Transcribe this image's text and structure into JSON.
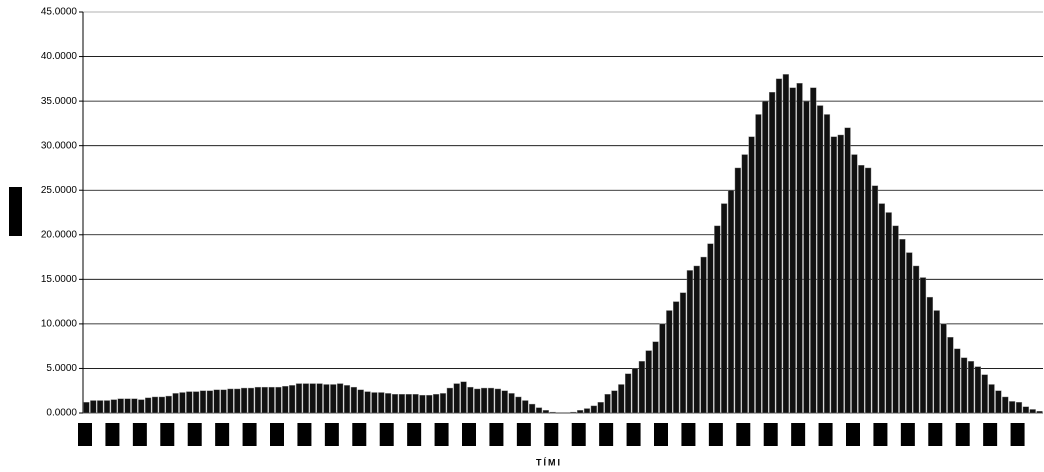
{
  "chart_data": {
    "type": "bar",
    "x_label": "TÍMI",
    "categories": [
      null,
      null,
      null,
      null,
      null,
      null,
      null,
      null,
      null,
      null,
      null,
      null,
      null,
      null,
      null,
      null,
      null,
      null,
      null,
      null,
      null,
      null,
      null,
      null,
      null,
      null,
      null,
      null,
      null,
      null,
      null,
      null,
      null,
      null,
      null,
      null,
      null,
      null,
      null,
      null,
      null,
      null,
      null,
      null,
      null,
      null,
      null,
      null,
      null,
      null,
      null,
      null,
      null,
      null,
      null,
      null,
      null,
      null,
      null,
      null,
      null,
      null,
      null,
      null,
      null,
      null,
      null,
      null,
      null,
      null,
      null,
      null,
      null,
      null,
      null,
      null,
      null,
      null,
      null,
      null,
      null,
      null,
      null,
      null,
      null,
      null,
      null,
      null,
      null,
      null,
      null,
      null,
      null,
      null,
      null,
      null,
      null,
      null,
      null,
      null,
      null,
      null,
      null,
      null,
      null,
      null,
      null,
      null,
      null,
      null,
      null,
      null,
      null,
      null,
      null,
      null,
      null,
      null,
      null,
      null,
      null,
      null,
      null,
      null,
      null,
      null,
      null,
      null,
      null,
      null,
      null,
      null,
      null,
      null,
      null,
      null,
      null,
      null,
      null,
      null
    ],
    "values": [
      1.2,
      1.4,
      1.4,
      1.4,
      1.5,
      1.6,
      1.6,
      1.6,
      1.5,
      1.7,
      1.8,
      1.8,
      1.9,
      2.2,
      2.3,
      2.4,
      2.4,
      2.5,
      2.5,
      2.6,
      2.6,
      2.7,
      2.7,
      2.8,
      2.8,
      2.9,
      2.9,
      2.9,
      2.9,
      3.0,
      3.1,
      3.3,
      3.3,
      3.3,
      3.3,
      3.2,
      3.2,
      3.3,
      3.1,
      2.9,
      2.6,
      2.4,
      2.3,
      2.3,
      2.2,
      2.1,
      2.1,
      2.1,
      2.1,
      2.0,
      2.0,
      2.1,
      2.2,
      2.8,
      3.3,
      3.5,
      2.9,
      2.7,
      2.8,
      2.8,
      2.7,
      2.5,
      2.2,
      1.8,
      1.4,
      1.0,
      0.6,
      0.3,
      0.1,
      0.0,
      0.0,
      0.1,
      0.3,
      0.5,
      0.8,
      1.2,
      2.1,
      2.5,
      3.2,
      4.4,
      5.0,
      5.8,
      7.0,
      8.0,
      10.0,
      11.5,
      12.5,
      13.5,
      16.0,
      16.5,
      17.5,
      19.0,
      21.0,
      23.5,
      25.0,
      27.5,
      29.0,
      31.0,
      33.5,
      35.0,
      36.0,
      37.5,
      38.0,
      36.5,
      37.0,
      35.0,
      36.5,
      34.5,
      33.5,
      31.0,
      31.2,
      32.0,
      29.0,
      27.8,
      27.5,
      25.5,
      23.5,
      22.5,
      21.0,
      19.5,
      18.0,
      16.5,
      15.2,
      13.0,
      11.5,
      10.0,
      8.5,
      7.2,
      6.2,
      5.8,
      5.2,
      4.3,
      3.2,
      2.5,
      1.8,
      1.3,
      1.2,
      0.7,
      0.4,
      0.2
    ],
    "color": "#111111",
    "ylim": [
      0,
      45
    ],
    "yticks": [
      {
        "value": 0,
        "label": "0.0000"
      },
      {
        "value": 5,
        "label": "5.0000"
      },
      {
        "value": 10,
        "label": "10.0000"
      },
      {
        "value": 15,
        "label": "15.0000"
      },
      {
        "value": 20,
        "label": "20.0000"
      },
      {
        "value": 25,
        "label": "25.0000"
      },
      {
        "value": 30,
        "label": "30.0000"
      },
      {
        "value": 35,
        "label": "35.0000"
      },
      {
        "value": 40,
        "label": "40.0000"
      },
      {
        "value": 45,
        "label": "45.0000"
      }
    ],
    "grid": true
  }
}
